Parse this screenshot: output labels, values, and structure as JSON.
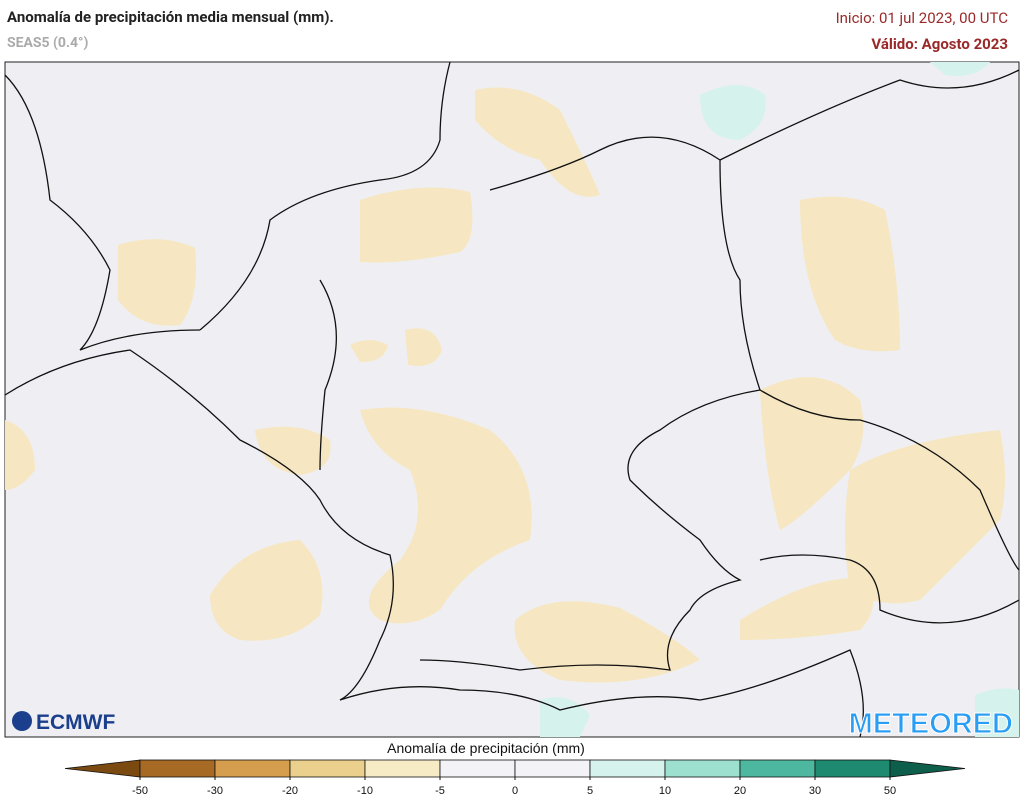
{
  "header": {
    "title": "Anomalía de precipitación media mensual (mm).",
    "subtitle": "SEAS5 (0.4°)",
    "init": "Inicio: 01 jul 2023, 00 UTC",
    "valid": "Válido: Agosto 2023"
  },
  "legend": {
    "label": "Anomalía de precipitación (mm)",
    "ticks": [
      -50,
      -30,
      -20,
      -10,
      -5,
      0,
      5,
      10,
      20,
      30,
      50
    ],
    "colors": [
      "#7b4a10",
      "#a66a24",
      "#d59e4e",
      "#ebcf8c",
      "#f7ebc6",
      "#f3f3f7",
      "#f3f3f7",
      "#d6f2ec",
      "#9ee0d0",
      "#4db89f",
      "#1e8a70",
      "#0d5f4c"
    ]
  },
  "logos": {
    "left": "ECMWF",
    "right": "METEORED"
  }
}
